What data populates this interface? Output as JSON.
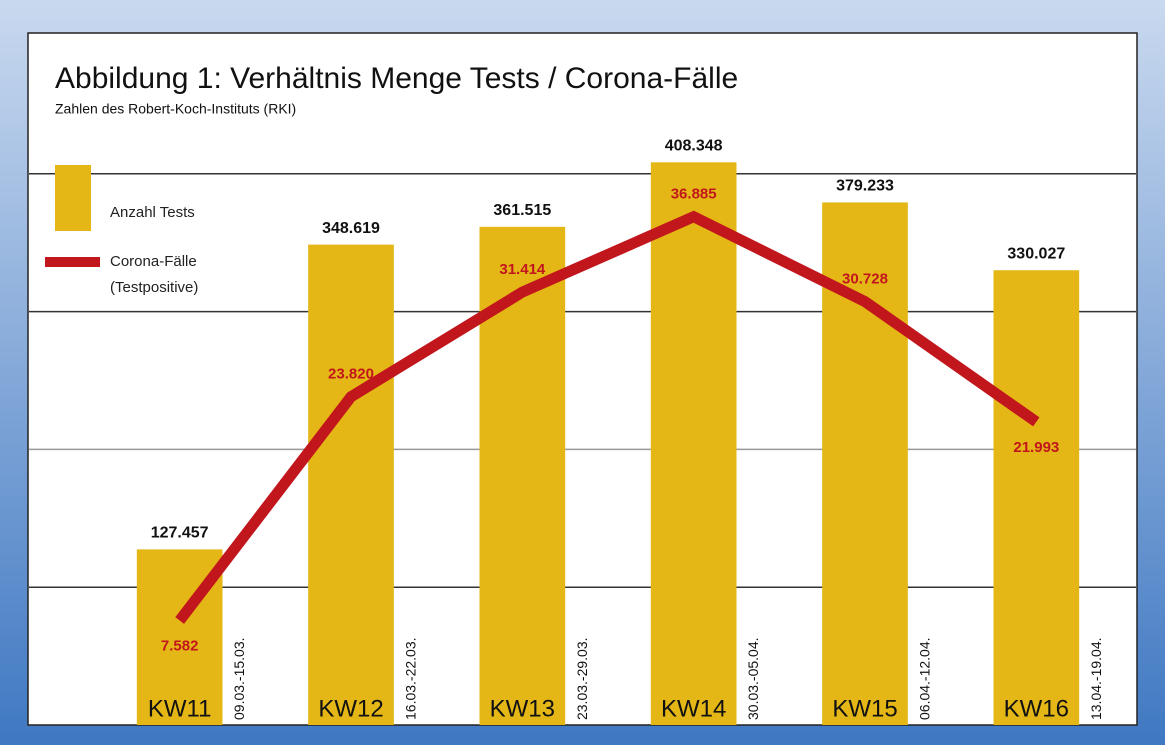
{
  "chart_data": {
    "type": "bar-line",
    "title": "Abbildung 1: Verhältnis Menge Tests / Corona-Fälle",
    "subtitle": "Zahlen des Robert-Koch-Instituts (RKI)",
    "categories": [
      "KW11",
      "KW12",
      "KW13",
      "KW14",
      "KW15",
      "KW16"
    ],
    "dates": [
      "09.03.-15.03.",
      "16.03.-22.03.",
      "23.03.-29.03.",
      "30.03.-05.04.",
      "06.04.-12.04.",
      "13.04.-19.04."
    ],
    "series": [
      {
        "name": "Anzahl Tests",
        "type": "bar",
        "color": "#e5b716",
        "values": [
          127457,
          348619,
          361515,
          408348,
          379233,
          330027
        ],
        "value_labels": [
          "127.457",
          "348.619",
          "361.515",
          "408.348",
          "379.233",
          "330.027"
        ]
      },
      {
        "name": "Corona-Fälle (Testpositive)",
        "type": "line",
        "axis": "y2",
        "color": "#c2161d",
        "values": [
          7582,
          23820,
          31414,
          36885,
          30728,
          21993
        ],
        "value_labels": [
          "7.582",
          "23.820",
          "31.414",
          "36.885",
          "30.728",
          "21.993"
        ]
      }
    ],
    "ylim": [
      0,
      500000
    ],
    "yticks": [
      100000,
      200000,
      300000,
      400000
    ],
    "y2lim": [
      0,
      50000
    ],
    "grid": true
  }
}
